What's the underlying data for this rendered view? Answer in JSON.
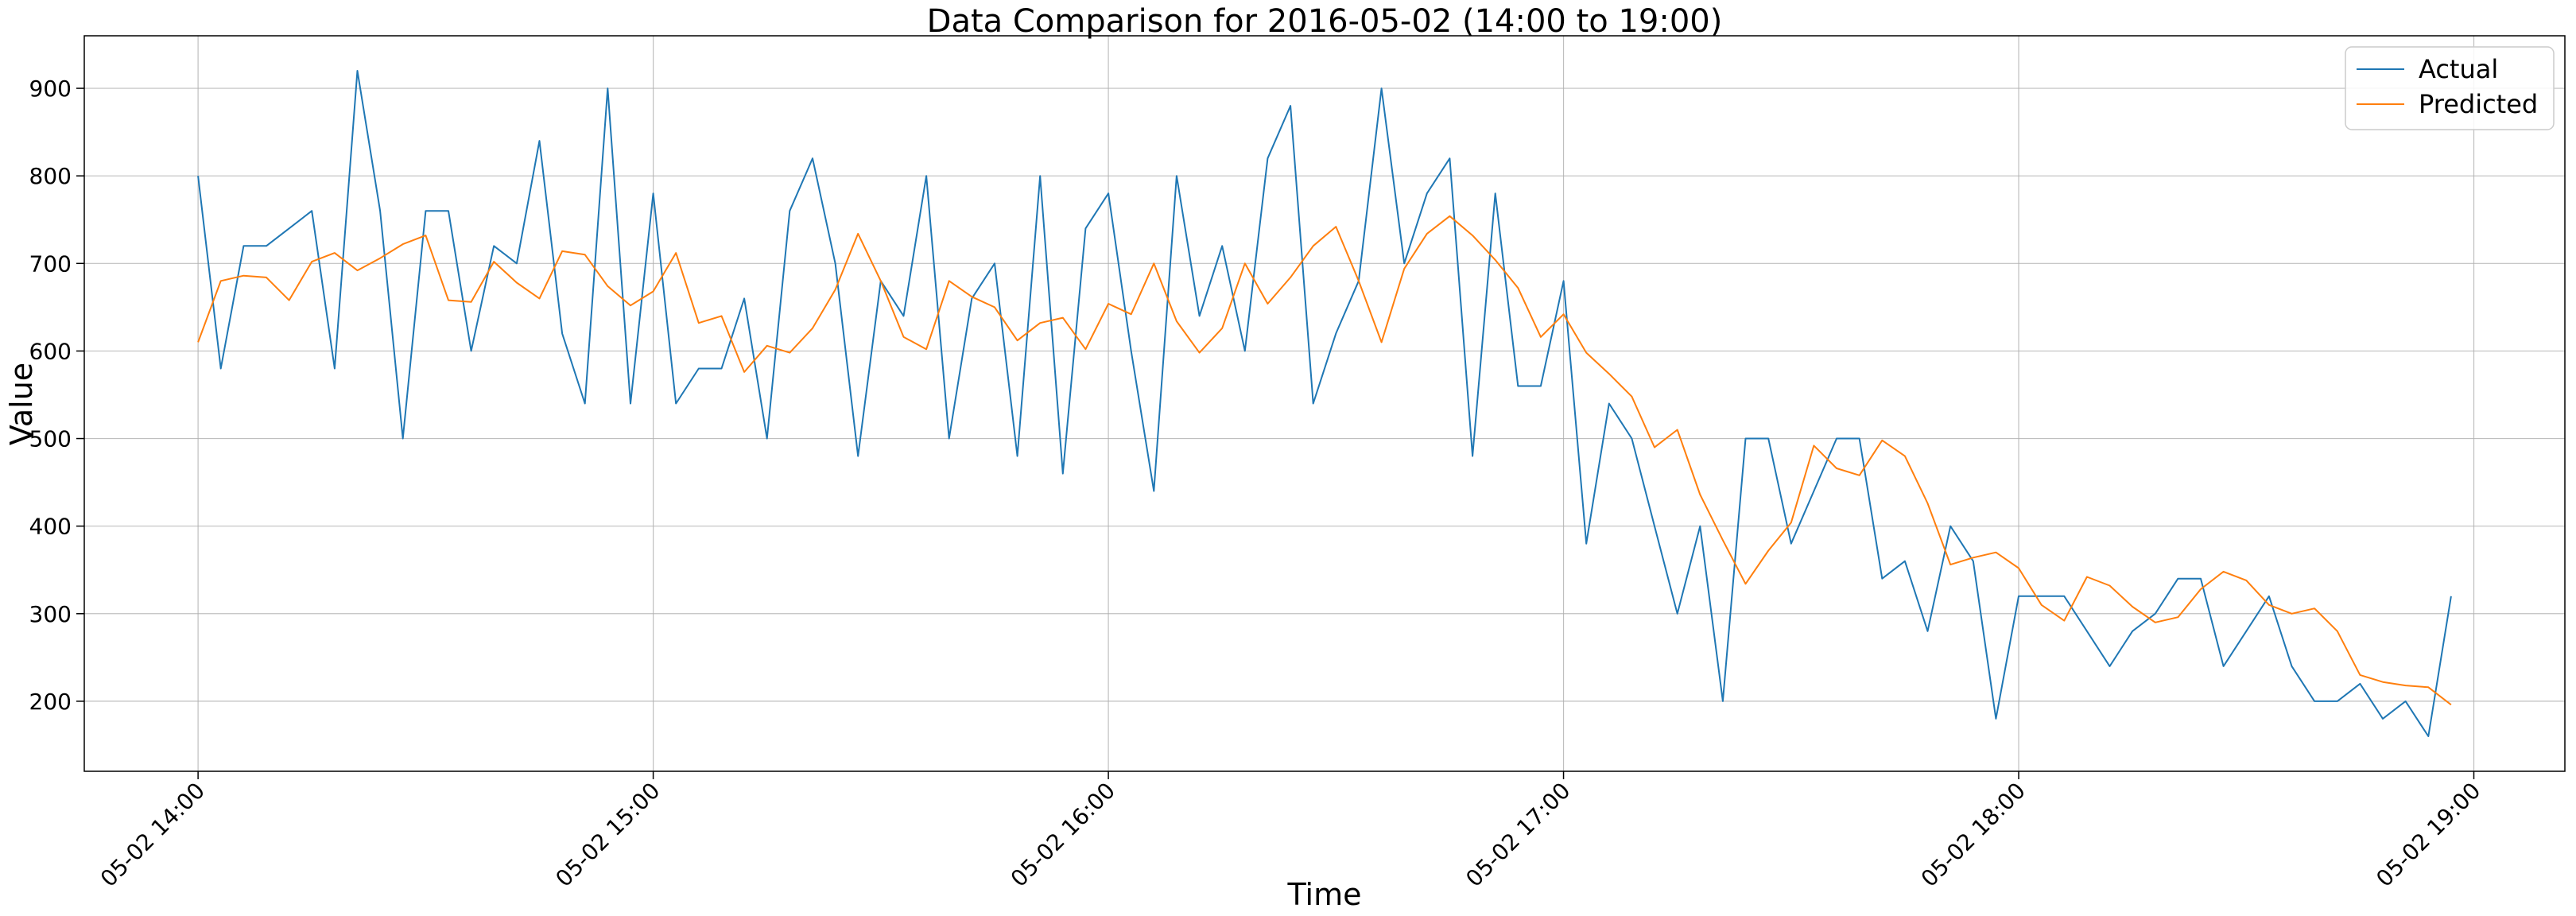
{
  "chart_data": {
    "type": "line",
    "title": "Data Comparison for 2016-05-02 (14:00 to 19:00)",
    "xlabel": "Time",
    "ylabel": "Value",
    "x_start": "2016-05-02 14:00",
    "x_step_minutes": 3,
    "xlim": [
      "2016-05-02 13:45",
      "2016-05-02 19:12"
    ],
    "ylim": [
      120,
      960
    ],
    "x_ticks": [
      "05-02 14:00",
      "05-02 15:00",
      "05-02 16:00",
      "05-02 17:00",
      "05-02 18:00",
      "05-02 19:00"
    ],
    "y_ticks": [
      200,
      300,
      400,
      500,
      600,
      700,
      800,
      900
    ],
    "grid": true,
    "legend_position": "top-right",
    "series": [
      {
        "name": "Actual",
        "color": "#1f77b4",
        "values": [
          800,
          580,
          720,
          720,
          740,
          760,
          580,
          920,
          760,
          500,
          760,
          760,
          600,
          720,
          700,
          840,
          620,
          540,
          900,
          540,
          780,
          540,
          580,
          580,
          660,
          500,
          760,
          820,
          700,
          480,
          680,
          640,
          800,
          500,
          660,
          700,
          480,
          800,
          460,
          740,
          780,
          600,
          440,
          800,
          640,
          720,
          600,
          820,
          880,
          540,
          620,
          680,
          900,
          700,
          780,
          820,
          480,
          780,
          560,
          560,
          680,
          380,
          540,
          500,
          400,
          300,
          400,
          200,
          500,
          500,
          380,
          440,
          500,
          500,
          340,
          360,
          280,
          400,
          360,
          180,
          320,
          320,
          320,
          280,
          240,
          280,
          300,
          340,
          340,
          240,
          280,
          320,
          240,
          200,
          200,
          220,
          180,
          200,
          160,
          320
        ]
      },
      {
        "name": "Predicted",
        "color": "#ff7f0e",
        "values": [
          610,
          680,
          686,
          684,
          658,
          702,
          712,
          692,
          706,
          722,
          732,
          658,
          656,
          702,
          678,
          660,
          714,
          710,
          674,
          652,
          668,
          712,
          632,
          640,
          576,
          606,
          598,
          626,
          670,
          734,
          680,
          616,
          602,
          680,
          662,
          650,
          612,
          632,
          638,
          602,
          654,
          642,
          700,
          634,
          598,
          626,
          700,
          654,
          684,
          720,
          742,
          680,
          610,
          694,
          734,
          754,
          732,
          704,
          672,
          616,
          642,
          598,
          574,
          548,
          490,
          510,
          436,
          384,
          334,
          372,
          404,
          492,
          466,
          458,
          498,
          480,
          426,
          356,
          364,
          370,
          352,
          310,
          292,
          342,
          332,
          308,
          290,
          296,
          328,
          348,
          338,
          310,
          300,
          306,
          280,
          230,
          222,
          218,
          216,
          196
        ]
      }
    ]
  }
}
